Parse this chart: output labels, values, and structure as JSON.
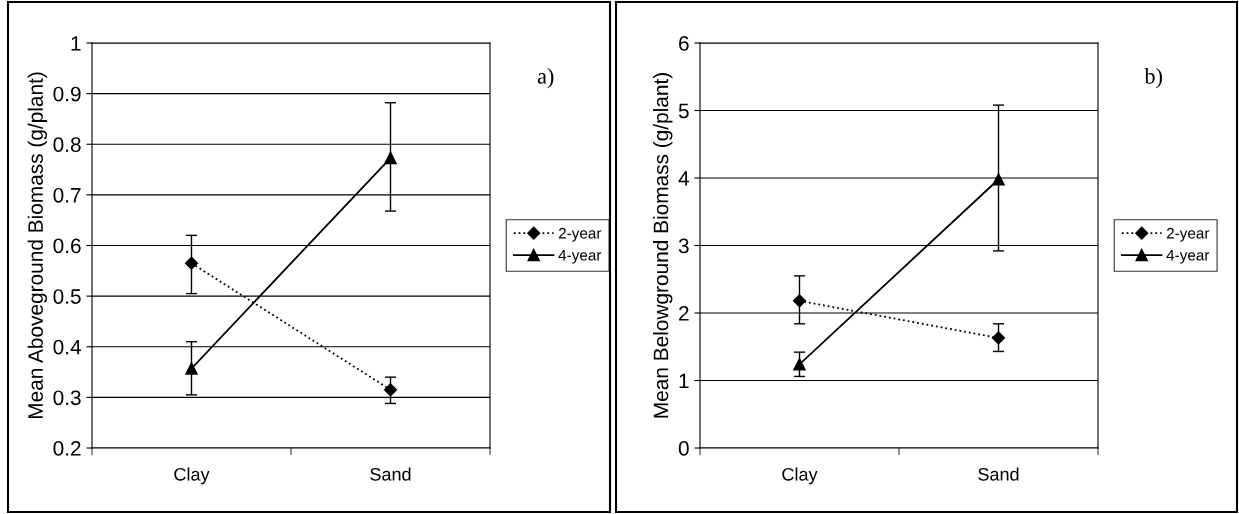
{
  "chart_data": [
    {
      "type": "line",
      "ylabel": "Mean Aboveground Biomass (g/plant)",
      "annotations": [
        "a)"
      ],
      "categories": [
        "Clay",
        "Sand"
      ],
      "series": [
        {
          "name": "2-year",
          "color": "#000000",
          "values": [
            0.565,
            0.315
          ],
          "errors": [
            [
              0.505,
              0.62
            ],
            [
              0.288,
              0.34
            ]
          ],
          "marker": "diamond",
          "line_style": "dotted"
        },
        {
          "name": "4-year",
          "color": "#000000",
          "values": [
            0.357,
            0.773
          ],
          "errors": [
            [
              0.305,
              0.41
            ],
            [
              0.668,
              0.882
            ]
          ],
          "marker": "triangle",
          "line_style": "solid"
        }
      ],
      "ylim": [
        0.2,
        1
      ],
      "yticks": [
        0.2,
        0.3,
        0.4,
        0.5,
        0.6,
        0.7,
        0.8,
        0.9,
        1
      ],
      "grid": "y",
      "legend": "right"
    },
    {
      "type": "line",
      "ylabel": "Mean Belowground Biomass (g/plant)",
      "annotations": [
        "b)"
      ],
      "categories": [
        "Clay",
        "Sand"
      ],
      "series": [
        {
          "name": "2-year",
          "color": "#000000",
          "values": [
            2.18,
            1.63
          ],
          "errors": [
            [
              1.84,
              2.55
            ],
            [
              1.43,
              1.84
            ]
          ],
          "marker": "diamond",
          "line_style": "dotted"
        },
        {
          "name": "4-year",
          "color": "#000000",
          "values": [
            1.24,
            3.98
          ],
          "errors": [
            [
              1.06,
              1.42
            ],
            [
              2.92,
              5.08
            ]
          ],
          "marker": "triangle",
          "line_style": "solid"
        }
      ],
      "ylim": [
        0,
        6
      ],
      "yticks": [
        0,
        1,
        2,
        3,
        4,
        5,
        6
      ],
      "grid": "y",
      "legend": "right"
    }
  ]
}
